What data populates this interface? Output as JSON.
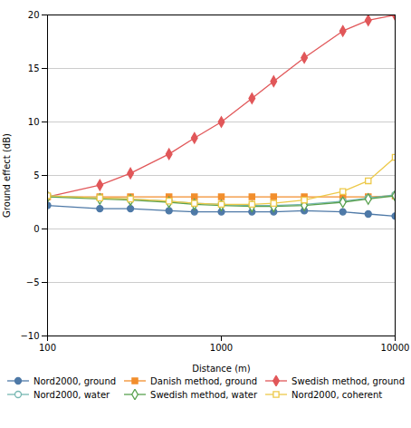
{
  "chart_data": {
    "type": "line",
    "xlabel": "Distance (m)",
    "ylabel": "Ground effect (dB)",
    "log": "x",
    "grid": "y",
    "xlim": [
      100,
      10000
    ],
    "xticks": [
      100,
      1000,
      10000
    ],
    "ylim": [
      -10,
      20
    ],
    "yticks": [
      -10,
      -5,
      0,
      5,
      10,
      15,
      20
    ],
    "x": [
      100,
      200,
      300,
      500,
      700,
      1000,
      1500,
      2000,
      3000,
      5000,
      7000,
      10000
    ],
    "series": [
      {
        "name": "Nord2000, ground",
        "marker": "circle",
        "values": [
          2.2,
          1.9,
          1.9,
          1.7,
          1.6,
          1.6,
          1.6,
          1.6,
          1.7,
          1.6,
          1.4,
          1.2
        ]
      },
      {
        "name": "Danish method, ground",
        "marker": "square",
        "values": [
          3.0,
          3.0,
          3.0,
          3.0,
          3.0,
          3.0,
          3.0,
          3.0,
          3.0,
          3.0,
          3.0,
          3.1
        ]
      },
      {
        "name": "Swedish method, ground",
        "marker": "diamond",
        "values": [
          3.0,
          4.1,
          5.2,
          7.0,
          8.5,
          10.0,
          12.2,
          13.8,
          16.0,
          18.5,
          19.5,
          20.0
        ]
      },
      {
        "name": "Nord2000, water",
        "marker": "circle-open",
        "values": [
          3.1,
          2.9,
          2.8,
          2.6,
          2.4,
          2.3,
          2.2,
          2.2,
          2.3,
          2.6,
          2.9,
          3.2
        ]
      },
      {
        "name": "Swedish method, water",
        "marker": "diamond-open",
        "values": [
          3.0,
          2.8,
          2.7,
          2.5,
          2.3,
          2.2,
          2.1,
          2.1,
          2.2,
          2.5,
          2.8,
          3.1
        ]
      },
      {
        "name": "Nord2000, coherent",
        "marker": "square-open",
        "values": [
          3.1,
          2.9,
          2.8,
          2.6,
          2.4,
          2.3,
          2.3,
          2.4,
          2.7,
          3.5,
          4.5,
          6.7
        ]
      }
    ]
  }
}
